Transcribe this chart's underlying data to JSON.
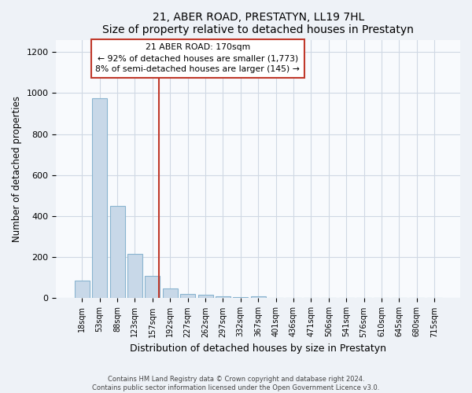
{
  "title": "21, ABER ROAD, PRESTATYN, LL19 7HL",
  "subtitle": "Size of property relative to detached houses in Prestatyn",
  "xlabel": "Distribution of detached houses by size in Prestatyn",
  "ylabel": "Number of detached properties",
  "bar_labels": [
    "18sqm",
    "53sqm",
    "88sqm",
    "123sqm",
    "157sqm",
    "192sqm",
    "227sqm",
    "262sqm",
    "297sqm",
    "332sqm",
    "367sqm",
    "401sqm",
    "436sqm",
    "471sqm",
    "506sqm",
    "541sqm",
    "576sqm",
    "610sqm",
    "645sqm",
    "680sqm",
    "715sqm"
  ],
  "bar_values": [
    85,
    975,
    450,
    215,
    110,
    48,
    22,
    18,
    10,
    5,
    8,
    0,
    0,
    0,
    0,
    0,
    0,
    0,
    0,
    0,
    0
  ],
  "bar_color": "#c8d8e8",
  "bar_edge_color": "#8ab4d0",
  "vline_x": 4.35,
  "annotation_box_text_line1": "21 ABER ROAD: 170sqm",
  "annotation_box_text_line2": "← 92% of detached houses are smaller (1,773)",
  "annotation_box_text_line3": "8% of semi-detached houses are larger (145) →",
  "vline_color": "#c0392b",
  "box_edge_color": "#c0392b",
  "ylim": [
    0,
    1260
  ],
  "yticks": [
    0,
    200,
    400,
    600,
    800,
    1000,
    1200
  ],
  "footer_text": "Contains HM Land Registry data © Crown copyright and database right 2024.\nContains public sector information licensed under the Open Government Licence v3.0.",
  "bg_color": "#eef2f7",
  "plot_bg_color": "#f8fafd",
  "grid_color": "#d0d8e4"
}
